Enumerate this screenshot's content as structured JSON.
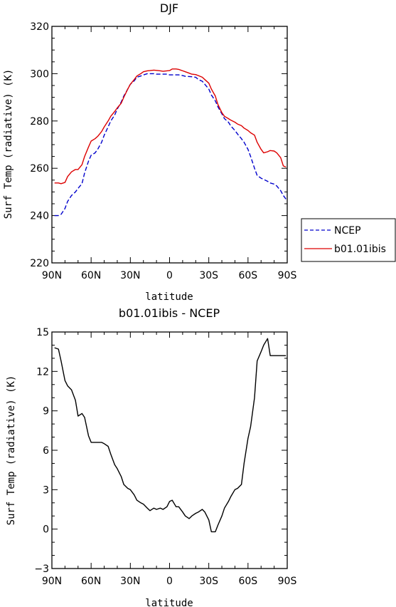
{
  "chart_data": [
    {
      "type": "line",
      "title": "DJF",
      "xlabel": "latitude",
      "ylabel": "Surf Temp (radiative) (K)",
      "xlim": [
        90,
        -90
      ],
      "ylim": [
        220,
        320
      ],
      "x_ticks": [
        90,
        60,
        30,
        0,
        -30,
        -60,
        -90
      ],
      "x_tick_labels": [
        "90N",
        "60N",
        "30N",
        "0",
        "30S",
        "60S",
        "90S"
      ],
      "y_ticks": [
        220,
        240,
        260,
        280,
        300,
        320
      ],
      "y_tick_labels": [
        "220",
        "240",
        "260",
        "280",
        "300",
        "320"
      ],
      "legend_position": "outside-right",
      "legend": [
        "NCEP",
        "b01.01ibis"
      ],
      "series": [
        {
          "name": "NCEP",
          "color": "#0000cc",
          "style": "dashed",
          "x": [
            88,
            85,
            83,
            80,
            78,
            75,
            72,
            70,
            67,
            65,
            62,
            60,
            57,
            55,
            52,
            50,
            47,
            45,
            42,
            40,
            37,
            35,
            32,
            30,
            27,
            25,
            22,
            20,
            17,
            15,
            12,
            10,
            7,
            5,
            2,
            0,
            -2,
            -5,
            -7,
            -10,
            -12,
            -15,
            -17,
            -20,
            -22,
            -25,
            -27,
            -30,
            -32,
            -35,
            -37,
            -40,
            -42,
            -45,
            -47,
            -50,
            -52,
            -55,
            -57,
            -60,
            -62,
            -65,
            -67,
            -70,
            -72,
            -75,
            -77,
            -80,
            -82,
            -85,
            -87,
            -89
          ],
          "values": [
            240,
            240,
            240.5,
            243,
            246,
            248.5,
            250,
            251.5,
            253.5,
            258,
            263,
            265.5,
            266.5,
            268,
            271,
            274,
            277.5,
            280,
            282.5,
            285,
            288,
            290.5,
            293.5,
            295.5,
            297,
            298.5,
            299,
            299.5,
            300,
            300,
            300,
            299.8,
            299.8,
            299.8,
            299.8,
            299.5,
            299.5,
            299.5,
            299.5,
            299.2,
            298.9,
            298.8,
            298.7,
            298.5,
            297.5,
            296.8,
            295.5,
            293.5,
            291,
            288.5,
            286,
            283,
            281,
            279.5,
            277.8,
            276,
            274.5,
            272.5,
            271,
            268,
            265,
            260,
            257,
            255.8,
            255.3,
            254.5,
            253.8,
            253.3,
            252.5,
            250.5,
            248.5,
            247
          ]
        },
        {
          "name": "b01.01ibis",
          "color": "#dd0000",
          "style": "solid",
          "x": [
            88,
            85,
            83,
            80,
            78,
            75,
            72,
            70,
            67,
            65,
            62,
            60,
            57,
            55,
            52,
            50,
            47,
            45,
            42,
            40,
            37,
            35,
            32,
            30,
            27,
            25,
            22,
            20,
            17,
            15,
            12,
            10,
            7,
            5,
            2,
            0,
            -2,
            -5,
            -7,
            -10,
            -12,
            -15,
            -17,
            -20,
            -22,
            -25,
            -27,
            -30,
            -32,
            -35,
            -37,
            -40,
            -42,
            -45,
            -47,
            -50,
            -52,
            -55,
            -57,
            -60,
            -62,
            -65,
            -67,
            -70,
            -72,
            -75,
            -77,
            -80,
            -82,
            -85,
            -87,
            -89
          ],
          "values": [
            253.8,
            253.8,
            253.5,
            254,
            256.5,
            258.5,
            259.5,
            259.5,
            261.5,
            265,
            269,
            271.5,
            272.5,
            273.5,
            275.5,
            277.5,
            280,
            282,
            284,
            285.5,
            287.5,
            290,
            293.5,
            295.5,
            297.5,
            299,
            300,
            300.8,
            301.2,
            301.3,
            301.5,
            301.4,
            301.2,
            301,
            301.2,
            301.3,
            302,
            302,
            301.8,
            301.2,
            300.8,
            300.2,
            299.8,
            299.6,
            299.2,
            298.5,
            297.5,
            296,
            293.5,
            290.5,
            287,
            283.5,
            282,
            281,
            280.3,
            279.5,
            278.7,
            278,
            277,
            276,
            275,
            274,
            271,
            268,
            266.5,
            267,
            267.5,
            267.3,
            266.5,
            264.5,
            261,
            260.5
          ]
        }
      ]
    },
    {
      "type": "line",
      "title": "b01.01ibis - NCEP",
      "xlabel": "latitude",
      "ylabel": "Surf Temp (radiative) (K)",
      "xlim": [
        90,
        -90
      ],
      "ylim": [
        -3,
        15
      ],
      "x_ticks": [
        90,
        60,
        30,
        0,
        -30,
        -60,
        -90
      ],
      "x_tick_labels": [
        "90N",
        "60N",
        "30N",
        "0",
        "30S",
        "60S",
        "90S"
      ],
      "y_ticks": [
        -3,
        0,
        3,
        6,
        9,
        12,
        15
      ],
      "y_tick_labels": [
        "−3",
        "0",
        "3",
        "6",
        "9",
        "12",
        "15"
      ],
      "series": [
        {
          "color": "#000000",
          "style": "solid",
          "x": [
            88,
            85,
            83,
            80,
            78,
            75,
            72,
            70,
            67,
            65,
            62,
            60,
            57,
            55,
            52,
            50,
            47,
            45,
            42,
            40,
            37,
            35,
            32,
            30,
            27,
            25,
            22,
            20,
            17,
            15,
            12,
            10,
            7,
            5,
            2,
            0,
            -2,
            -5,
            -7,
            -10,
            -12,
            -15,
            -17,
            -20,
            -22,
            -25,
            -27,
            -30,
            -32,
            -35,
            -37,
            -40,
            -42,
            -45,
            -47,
            -50,
            -52,
            -55,
            -57,
            -60,
            -62,
            -65,
            -67,
            -70,
            -72,
            -75,
            -77,
            -80,
            -82,
            -85,
            -87,
            -89
          ],
          "values": [
            13.8,
            13.7,
            12.8,
            11.3,
            10.9,
            10.6,
            9.8,
            8.6,
            8.8,
            8.5,
            7.1,
            6.6,
            6.6,
            6.6,
            6.6,
            6.5,
            6.3,
            5.7,
            4.9,
            4.6,
            4,
            3.4,
            3.1,
            3,
            2.6,
            2.2,
            2,
            1.9,
            1.6,
            1.4,
            1.6,
            1.5,
            1.6,
            1.5,
            1.7,
            2.1,
            2.2,
            1.7,
            1.7,
            1.3,
            1,
            0.8,
            1,
            1.2,
            1.3,
            1.5,
            1.3,
            0.7,
            -0.2,
            -0.2,
            0.3,
            1,
            1.6,
            2.1,
            2.5,
            3,
            3.1,
            3.4,
            5,
            6.9,
            7.8,
            10,
            12.8,
            13.5,
            14,
            14.5,
            13.2,
            13.2,
            13.2,
            13.2,
            13.2,
            13.2
          ]
        }
      ]
    }
  ]
}
